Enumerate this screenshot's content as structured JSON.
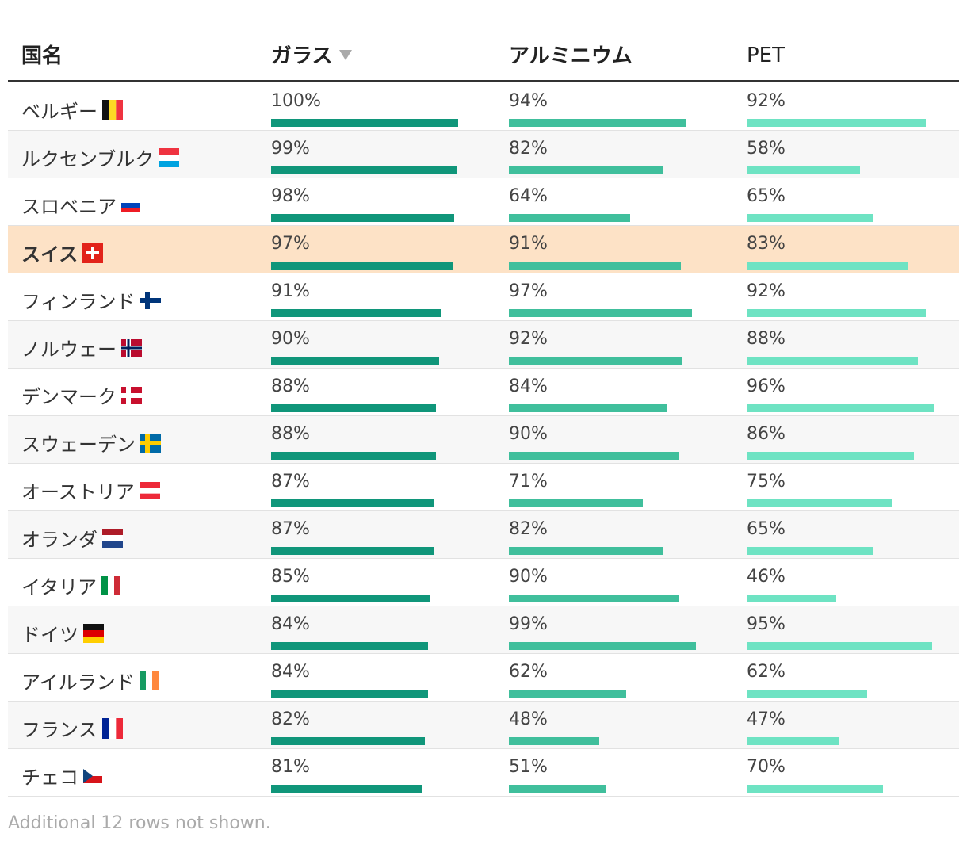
{
  "table": {
    "headers": [
      "国名",
      "ガラス",
      "アルミニウム",
      "PET"
    ],
    "bar_colors": [
      "#10967a",
      "#40bf9c",
      "#6ee3c3"
    ],
    "highlighted_row": 3,
    "rows": [
      {
        "name": "ベルギー",
        "values": [
          100,
          94,
          92
        ],
        "labels": [
          "100%",
          "94%",
          "92%"
        ]
      },
      {
        "name": "ルクセンブルク",
        "values": [
          99,
          82,
          58
        ],
        "labels": [
          "99%",
          "82%",
          "58%"
        ]
      },
      {
        "name": "スロベニア",
        "values": [
          98,
          64,
          65
        ],
        "labels": [
          "98%",
          "64%",
          "65%"
        ]
      },
      {
        "name": "スイス",
        "values": [
          97,
          91,
          83
        ],
        "labels": [
          "97%",
          "91%",
          "83%"
        ]
      },
      {
        "name": "フィンランド",
        "values": [
          91,
          97,
          92
        ],
        "labels": [
          "91%",
          "97%",
          "92%"
        ]
      },
      {
        "name": "ノルウェー",
        "values": [
          90,
          92,
          88
        ],
        "labels": [
          "90%",
          "92%",
          "88%"
        ]
      },
      {
        "name": "デンマーク",
        "values": [
          88,
          84,
          96
        ],
        "labels": [
          "88%",
          "84%",
          "96%"
        ]
      },
      {
        "name": "スウェーデン",
        "values": [
          88,
          90,
          86
        ],
        "labels": [
          "88%",
          "90%",
          "86%"
        ]
      },
      {
        "name": "オーストリア",
        "values": [
          87,
          71,
          75
        ],
        "labels": [
          "87%",
          "71%",
          "75%"
        ]
      },
      {
        "name": "オランダ",
        "values": [
          87,
          82,
          65
        ],
        "labels": [
          "87%",
          "82%",
          "65%"
        ]
      },
      {
        "name": "イタリア",
        "values": [
          85,
          90,
          46
        ],
        "labels": [
          "85%",
          "90%",
          "46%"
        ]
      },
      {
        "name": "ドイツ",
        "values": [
          84,
          99,
          95
        ],
        "labels": [
          "84%",
          "99%",
          "95%"
        ]
      },
      {
        "name": "アイルランド",
        "values": [
          84,
          62,
          62
        ],
        "labels": [
          "84%",
          "62%",
          "62%"
        ]
      },
      {
        "name": "フランス",
        "values": [
          82,
          48,
          47
        ],
        "labels": [
          "82%",
          "48%",
          "47%"
        ]
      },
      {
        "name": "チェコ",
        "values": [
          81,
          51,
          70
        ],
        "labels": [
          "81%",
          "51%",
          "70%"
        ]
      }
    ],
    "footer": "Additional 12 rows not shown."
  }
}
